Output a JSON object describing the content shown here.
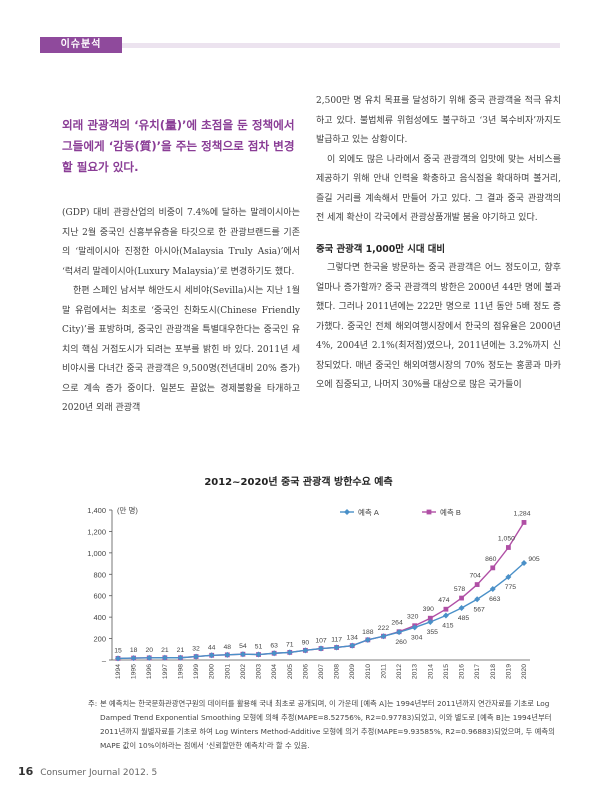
{
  "header": {
    "section": "이슈분석"
  },
  "lead": "외래 관광객의 ‘유치(量)’에 초점을 둔 정책에서 그들에게 ‘감동(質)’을 주는 정책으로 점차 변경할 필요가 있다.",
  "left_column": {
    "p1": "(GDP) 대비 관광산업의 비중이 7.4%에 달하는 말레이시아는 지난 2월 중국인 신흥부유층을 타깃으로 한 관광브랜드를 기존의 ‘말레이시아 진정한 아시아(Malaysia Truly Asia)’에서 ‘럭셔리 말레이시아(Luxury Malaysia)’로 변경하기도 했다.",
    "p2": "한편 스페인 남서부 해안도시 세비야(Sevilla)시는 지난 1월말 유럽에서는 최초로 ‘중국인 친화도시(Chinese Friendly City)’를 표방하며, 중국인 관광객을 특별대우한다는 중국인 유치의 핵심 거점도시가 되려는 포부를 밝힌 바 있다. 2011년 세비야시를 다녀간 중국 관광객은 9,500명(전년대비 20% 증가)으로 계속 증가 중이다. 일본도 끝없는 경제불황을 타개하고 2020년 외래 관광객"
  },
  "right_column": {
    "p1": "2,500만 명 유치 목표를 달성하기 위해 중국 관광객을 적극 유치하고 있다. 불법체류 위험성에도 불구하고 ‘3년 복수비자’까지도 발급하고 있는 상황이다.",
    "p2": "이 외에도 많은 나라에서 중국 관광객의 입맛에 맞는 서비스를 제공하기 위해 안내 인력을 확충하고 음식점을 확대하며 볼거리, 즐길 거리를 계속해서 만들어 가고 있다. 그 결과 중국 관광객의 전 세계 확산이 각국에서 관광상품개발 붐을 야기하고 있다.",
    "subhead": "중국 관광객 1,000만 시대 대비",
    "p3": "그렇다면 한국을 방문하는 중국 관광객은 어느 정도이고, 향후 얼마나 증가할까? 중국 관광객의 방한은 2000년 44만 명에 불과했다. 그러나 2011년에는 222만 명으로 11년 동안 5배 정도 증가했다. 중국인 전체 해외여행시장에서 한국의 점유율은 2000년 4%, 2004년 2.1%(최저점)였으나, 2011년에는 3.2%까지 신장되었다. 매년 중국인 해외여행시장의 70% 정도는 홍콩과 마카오에 집중되고, 나머지 30%를 대상으로 많은 국가들이"
  },
  "chart_data": {
    "type": "line",
    "title": "2012~2020년 중국 관광객 방한수요 예측",
    "ylabel": "(만 명)",
    "ylim": [
      0,
      1400
    ],
    "yticks": [
      "–",
      "200",
      "400",
      "600",
      "800",
      "1,000",
      "1,200",
      "1,400"
    ],
    "grid": false,
    "legend_position": "top-right",
    "x": [
      "1994",
      "1995",
      "1996",
      "1997",
      "1998",
      "1999",
      "2000",
      "2001",
      "2002",
      "2003",
      "2004",
      "2005",
      "2006",
      "2007",
      "2008",
      "2009",
      "2010",
      "2011",
      "2012",
      "2013",
      "2014",
      "2015",
      "2016",
      "2017",
      "2018",
      "2019",
      "2020"
    ],
    "series": [
      {
        "name": "예측 A",
        "color": "#4a90c8",
        "values": [
          15,
          18,
          20,
          21,
          21,
          32,
          44,
          48,
          54,
          51,
          63,
          71,
          90,
          107,
          117,
          134,
          188,
          222,
          260,
          304,
          355,
          415,
          485,
          567,
          663,
          775,
          905
        ]
      },
      {
        "name": "예측 B",
        "color": "#b04fa5",
        "values": [
          15,
          18,
          20,
          21,
          21,
          32,
          44,
          48,
          54,
          51,
          63,
          71,
          90,
          107,
          117,
          134,
          188,
          222,
          264,
          320,
          390,
          474,
          578,
          704,
          860,
          1050,
          1284
        ]
      }
    ],
    "labels_bottom": [
      {
        "i": 0,
        "t": "15"
      },
      {
        "i": 1,
        "t": "18"
      },
      {
        "i": 2,
        "t": "20"
      },
      {
        "i": 3,
        "t": "21"
      },
      {
        "i": 4,
        "t": "21"
      },
      {
        "i": 5,
        "t": "32"
      },
      {
        "i": 6,
        "t": "44"
      },
      {
        "i": 7,
        "t": "48"
      },
      {
        "i": 8,
        "t": "54"
      },
      {
        "i": 9,
        "t": "51"
      },
      {
        "i": 10,
        "t": "63"
      },
      {
        "i": 11,
        "t": "71"
      },
      {
        "i": 12,
        "t": "90"
      },
      {
        "i": 13,
        "t": "107"
      },
      {
        "i": 14,
        "t": "117"
      },
      {
        "i": 15,
        "t": "134"
      },
      {
        "i": 16,
        "t": "188"
      },
      {
        "i": 17,
        "t": "222"
      }
    ],
    "labels_a": [
      "260",
      "304",
      "355",
      "415",
      "485",
      "567",
      "663",
      "775",
      "905"
    ],
    "labels_b": [
      "264",
      "320",
      "390",
      "474",
      "578",
      "704",
      "860",
      "1,050",
      "1,284"
    ]
  },
  "note": {
    "label": "주:",
    "text": "본 예측치는 한국문화관광연구원의 데이터를 활용해 국내 최초로 공개되며, 이 가운데 [예측 A]는 1994년부터 2011년까지 연간자료를 기초로 Log Damped Trend Exponential Smoothing 모형에 의해 추정(MAPE=8.52756%, R2=0.97783)되었고, 이와 별도로 [예측 B]는 1994년부터 2011년까지 월별자료를 기초로 하여 Log Winters Method-Additive 모형에 의거 추정(MAPE=9.93585%, R2=0.96883)되었으며, 두 예측의 MAPE 값이 10%이하라는 점에서 ‘신뢰할만한 예측치’라 할 수 있음."
  },
  "footer": {
    "page": "16",
    "journal": "Consumer Journal 2012. 5"
  }
}
